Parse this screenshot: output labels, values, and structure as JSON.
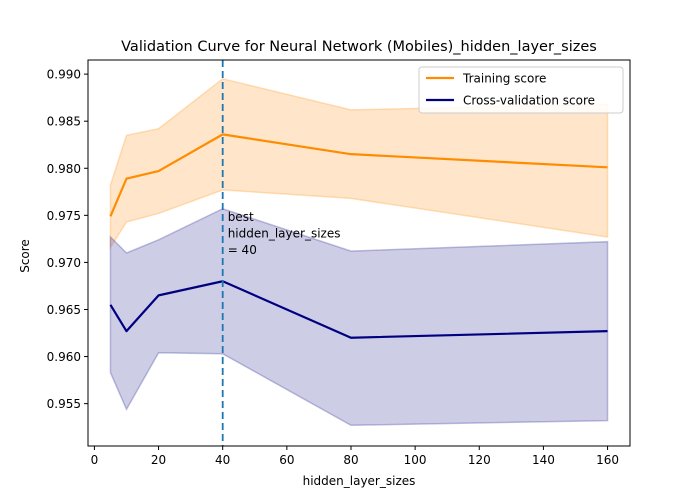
{
  "chart_data": {
    "type": "line",
    "title": "Validation Curve for Neural Network (Mobiles)_hidden_layer_sizes",
    "xlabel": "hidden_layer_sizes",
    "ylabel": "Score",
    "xlim": [
      -2,
      167
    ],
    "ylim": [
      0.9505,
      0.9915
    ],
    "xticks": [
      0,
      20,
      40,
      60,
      80,
      100,
      120,
      140,
      160
    ],
    "yticks": [
      0.955,
      0.96,
      0.965,
      0.97,
      0.975,
      0.98,
      0.985,
      0.99
    ],
    "ytick_labels": [
      "0.955",
      "0.960",
      "0.965",
      "0.970",
      "0.975",
      "0.980",
      "0.985",
      "0.990"
    ],
    "x": [
      5,
      10,
      20,
      40,
      80,
      160
    ],
    "legend_position": "top-right",
    "series": [
      {
        "name": "Training score",
        "color": "#ff8c00",
        "band_color": "#ffa640",
        "values": [
          0.9749,
          0.9789,
          0.9797,
          0.9836,
          0.9815,
          0.9801
        ],
        "upper": [
          0.9782,
          0.9835,
          0.9842,
          0.9895,
          0.9862,
          0.9868
        ],
        "lower": [
          0.9716,
          0.9743,
          0.9752,
          0.9777,
          0.9768,
          0.9727
        ]
      },
      {
        "name": "Cross-validation score",
        "color": "#000080",
        "band_color": "#4a4aa6",
        "values": [
          0.9655,
          0.9627,
          0.9665,
          0.968,
          0.962,
          0.9627
        ],
        "upper": [
          0.9727,
          0.971,
          0.9724,
          0.9757,
          0.9712,
          0.9722
        ],
        "lower": [
          0.9583,
          0.9544,
          0.9604,
          0.9603,
          0.9527,
          0.9532
        ]
      }
    ],
    "best_line": {
      "x": 40,
      "color": "#1f77b4",
      "annotation": [
        "best",
        "hidden_layer_sizes",
        "= 40"
      ]
    }
  }
}
